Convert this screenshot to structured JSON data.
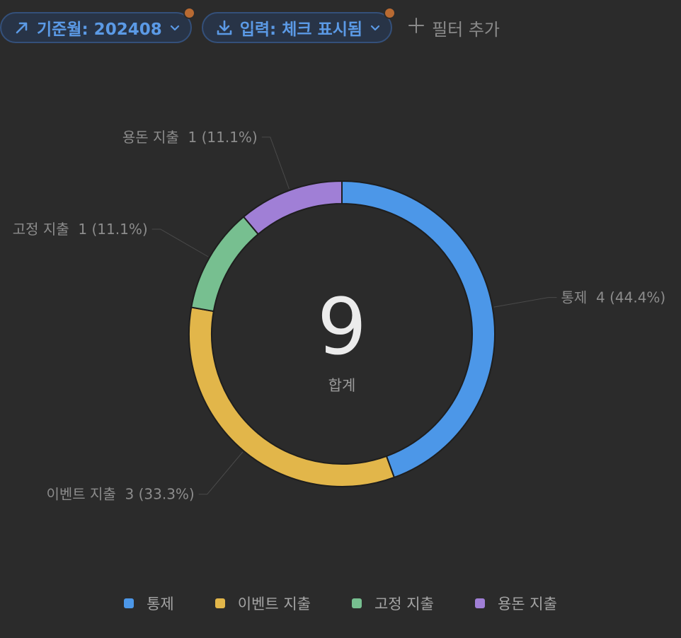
{
  "filters": {
    "month": {
      "label": "기준월: 202408",
      "icon": "arrow-up-right-icon"
    },
    "input": {
      "label": "입력: 체크 표시됨",
      "icon": "download-icon"
    },
    "add": {
      "label": "필터 추가",
      "icon": "plus-icon"
    }
  },
  "colors": {
    "accent": "#5b9ae6",
    "badge": "#b86a32"
  },
  "chart_data": {
    "type": "pie",
    "variant": "donut",
    "total": 9,
    "total_label": "합계",
    "legend_position": "bottom",
    "slices": [
      {
        "name": "통제",
        "value": 4,
        "percent": "44.4%",
        "color": "#4c97e8",
        "label": "통제  4 (44.4%)"
      },
      {
        "name": "이벤트 지출",
        "value": 3,
        "percent": "33.3%",
        "color": "#e2b64a",
        "label": "이벤트 지출  3 (33.3%)"
      },
      {
        "name": "고정 지출",
        "value": 1,
        "percent": "11.1%",
        "color": "#77bf90",
        "label": "고정 지출  1 (11.1%)"
      },
      {
        "name": "용돈 지출",
        "value": 1,
        "percent": "11.1%",
        "color": "#a07fd6",
        "label": "용돈 지출  1 (11.1%)"
      }
    ]
  }
}
